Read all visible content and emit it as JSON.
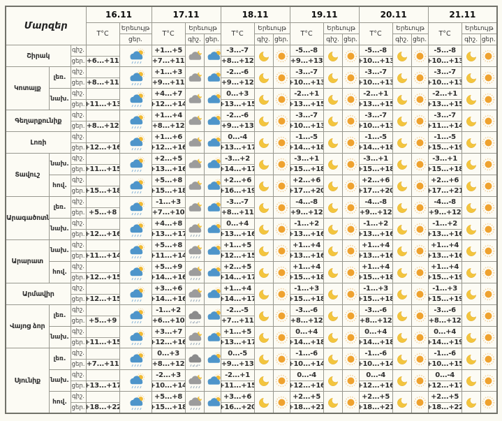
{
  "table": {
    "region_header": "Մարզեր",
    "temp_header": "T°C",
    "phenomenon_header": "Երեւույթ",
    "night_abbr": "գիշ.",
    "day_abbr": "ցեր.",
    "dates": [
      "16.11",
      "17.11",
      "18.11",
      "19.11",
      "20.11",
      "21.11"
    ],
    "icon_rules": {
      "date_16_day": "rain-day",
      "date_17_day": "cloud-day",
      "dates_18_21_night": "moon",
      "dates_18_21_day": "sun"
    },
    "icons": {
      "rain-day": "sun-behind-cloud-with-rain-icon",
      "cloud-day": "sun-behind-cloud-icon",
      "cloud-night": "moon-behind-cloud-icon",
      "rain-night": "moon-behind-cloud-with-rain-icon",
      "sleet-night": "cloud-with-rain-and-snow-icon",
      "moon": "crescent-moon-icon",
      "sun": "sun-icon"
    },
    "regions": [
      {
        "name": "Շիրակ",
        "rows": [
          {
            "zone": "",
            "night_icon_17": "cloud-night",
            "temps": [
              [
                "",
                "+6...+11"
              ],
              [
                "+1...+5",
                "+7...+11"
              ],
              [
                "-3...-7",
                "+8...+12"
              ],
              [
                "-5...-8",
                "+9...+13"
              ],
              [
                "-5...-8",
                "+10...+13"
              ],
              [
                "-5...-8",
                "+10...+13"
              ]
            ]
          }
        ]
      },
      {
        "name": "Կոտայք",
        "rows": [
          {
            "zone": "լեռ.",
            "night_icon_17": "cloud-night",
            "temps": [
              [
                "",
                "+8...+11"
              ],
              [
                "+1...+3",
                "+9...+11"
              ],
              [
                "-2...-6",
                "+9...+12"
              ],
              [
                "-3...-7",
                "+10...+13"
              ],
              [
                "-3...-7",
                "+10...+13"
              ],
              [
                "-3...-7",
                "+10...+13"
              ]
            ]
          },
          {
            "zone": "նախ.",
            "night_icon_17": "cloud-night",
            "temps": [
              [
                "",
                "+11...+13"
              ],
              [
                "+4...+7",
                "+12...+14"
              ],
              [
                "0...+3",
                "+13...+15"
              ],
              [
                "-2...+1",
                "+13...+15"
              ],
              [
                "-2...+1",
                "+13...+15"
              ],
              [
                "-2...+1",
                "+13...+15"
              ]
            ]
          }
        ]
      },
      {
        "name": "Գեղարքունիք",
        "rows": [
          {
            "zone": "",
            "night_icon_17": "cloud-night",
            "temps": [
              [
                "",
                "+8...+12"
              ],
              [
                "+1...+4",
                "+8...+12"
              ],
              [
                "-2...-6",
                "+9...+13"
              ],
              [
                "-3...-7",
                "+10...+13"
              ],
              [
                "-3...-7",
                "+10...+13"
              ],
              [
                "-3...-7",
                "+11...+14"
              ]
            ]
          }
        ]
      },
      {
        "name": "Լոռի",
        "rows": [
          {
            "zone": "",
            "night_icon_17": "cloud-night",
            "temps": [
              [
                "",
                "+12...+16"
              ],
              [
                "+1...+6",
                "+12...+16"
              ],
              [
                "0...-4",
                "+13...+17"
              ],
              [
                "-1...-5",
                "+14...+18"
              ],
              [
                "-1...-5",
                "+14...+18"
              ],
              [
                "-1...-5",
                "+15...+19"
              ]
            ]
          }
        ]
      },
      {
        "name": "Տավուշ",
        "rows": [
          {
            "zone": "նախ.",
            "night_icon_17": "cloud-night",
            "temps": [
              [
                "",
                "+11...+15"
              ],
              [
                "+2...+5",
                "+13...+16"
              ],
              [
                "-3...+2",
                "+14...+17"
              ],
              [
                "-3...+1",
                "+15...+18"
              ],
              [
                "-3...+1",
                "+15...+18"
              ],
              [
                "-3...+1",
                "+15...+18"
              ]
            ]
          },
          {
            "zone": "հով.",
            "night_icon_17": "cloud-night",
            "temps": [
              [
                "",
                "+15...+18"
              ],
              [
                "+5...+8",
                "+15...+18"
              ],
              [
                "+2...+6",
                "+16...+19"
              ],
              [
                "+2...+6",
                "+17...+20"
              ],
              [
                "+2...+6",
                "+17...+20"
              ],
              [
                "+2...+6",
                "+17...+21"
              ]
            ]
          }
        ]
      },
      {
        "name": "Արագածոտն",
        "rows": [
          {
            "zone": "լեռ.",
            "night_icon_17": "cloud-night",
            "temps": [
              [
                "",
                "+5...+8"
              ],
              [
                "-1...+3",
                "+7...+10"
              ],
              [
                "-3...-7",
                "+8...+11"
              ],
              [
                "-4...-8",
                "+9...+12"
              ],
              [
                "-4...-8",
                "+9...+12"
              ],
              [
                "-4...-8",
                "+9...+12"
              ]
            ]
          },
          {
            "zone": "նախ.",
            "night_icon_17": "rain-night",
            "temps": [
              [
                "",
                "+12...+16"
              ],
              [
                "+4...+8",
                "+13...+17"
              ],
              [
                "0...+4",
                "+13...+16"
              ],
              [
                "-1...+2",
                "+13...+16"
              ],
              [
                "-1...+2",
                "+13...+16"
              ],
              [
                "-1...+2",
                "+13...+16"
              ]
            ]
          }
        ]
      },
      {
        "name": "Արարատ",
        "rows": [
          {
            "zone": "նախ.",
            "night_icon_17": "rain-night",
            "temps": [
              [
                "",
                "+11...+14"
              ],
              [
                "+5...+8",
                "+11...+14"
              ],
              [
                "+1...+5",
                "+12...+15"
              ],
              [
                "+1...+4",
                "+13...+16"
              ],
              [
                "+1...+4",
                "+13...+16"
              ],
              [
                "+1...+4",
                "+13...+16"
              ]
            ]
          },
          {
            "zone": "հով.",
            "night_icon_17": "rain-night",
            "temps": [
              [
                "",
                "+12...+15"
              ],
              [
                "+5...+9",
                "+14...+16"
              ],
              [
                "+2...+5",
                "+14...+17"
              ],
              [
                "+1...+4",
                "+15...+18"
              ],
              [
                "+1...+4",
                "+15...+18"
              ],
              [
                "+1...+4",
                "+15...+19"
              ]
            ]
          }
        ]
      },
      {
        "name": "Արմավիր",
        "rows": [
          {
            "zone": "",
            "night_icon_17": "rain-night",
            "temps": [
              [
                "",
                "+12...+15"
              ],
              [
                "+3...+6",
                "+14...+16"
              ],
              [
                "+1...+4",
                "+14...+17"
              ],
              [
                "-1...+3",
                "+15...+18"
              ],
              [
                "-1...+3",
                "+15...+18"
              ],
              [
                "-1...+3",
                "+15...+19"
              ]
            ]
          }
        ]
      },
      {
        "name": "Վայոց ձոր",
        "rows": [
          {
            "zone": "լեռ.",
            "night_icon_17": "sleet-night",
            "temps": [
              [
                "",
                "+5...+9"
              ],
              [
                "-1...+2",
                "+6...+10"
              ],
              [
                "-2...-5",
                "+7...+11"
              ],
              [
                "-3...-6",
                "+8...+12"
              ],
              [
                "-3...-6",
                "+8...+12"
              ],
              [
                "-3...-6",
                "+8...+12"
              ]
            ]
          },
          {
            "zone": "նախ.",
            "night_icon_17": "rain-night",
            "temps": [
              [
                "",
                "+11...+15"
              ],
              [
                "+3...+7",
                "+12...+16"
              ],
              [
                "+1...+5",
                "+13...+17"
              ],
              [
                "0...+4",
                "+14...+18"
              ],
              [
                "0...+4",
                "+14...+18"
              ],
              [
                "0...+4",
                "+14...+19"
              ]
            ]
          }
        ]
      },
      {
        "name": "Սյունիք",
        "rows": [
          {
            "zone": "լեռ.",
            "night_icon_17": "sleet-night",
            "temps": [
              [
                "",
                "+7...+11"
              ],
              [
                "0...+3",
                "+8...+12"
              ],
              [
                "0...-5",
                "+9...+13"
              ],
              [
                "-1...-6",
                "+10...+14"
              ],
              [
                "-1...-6",
                "+10...+14"
              ],
              [
                "-1...-6",
                "+10...+15"
              ]
            ]
          },
          {
            "zone": "նախ.",
            "night_icon_17": "rain-night",
            "temps": [
              [
                "",
                "+13...+17"
              ],
              [
                "-2...+3",
                "+10...+14"
              ],
              [
                "-2...+1",
                "+11...+15"
              ],
              [
                "0...-4",
                "+12...+16"
              ],
              [
                "0...-4",
                "+12...+16"
              ],
              [
                "0...-4",
                "+12...+17"
              ]
            ]
          },
          {
            "zone": "հով.",
            "night_icon_17": "rain-night",
            "temps": [
              [
                "",
                "+18...+22"
              ],
              [
                "+5...+8",
                "+15...+18"
              ],
              [
                "+3...+6",
                "+16...+20"
              ],
              [
                "+2...+5",
                "+18...+21"
              ],
              [
                "+2...+5",
                "+18...+21"
              ],
              [
                "+2...+5",
                "+18...+22"
              ]
            ]
          }
        ]
      }
    ],
    "colors": {
      "sun": "#efa22f",
      "moon": "#f3c53d",
      "cloud_blue": "#4e95ca",
      "cloud_gray": "#9c9c9c",
      "cloud_dark": "#8b8b8b",
      "border": "#98988f",
      "text": "#2e2e2e",
      "background": "#fbfaf2"
    }
  }
}
